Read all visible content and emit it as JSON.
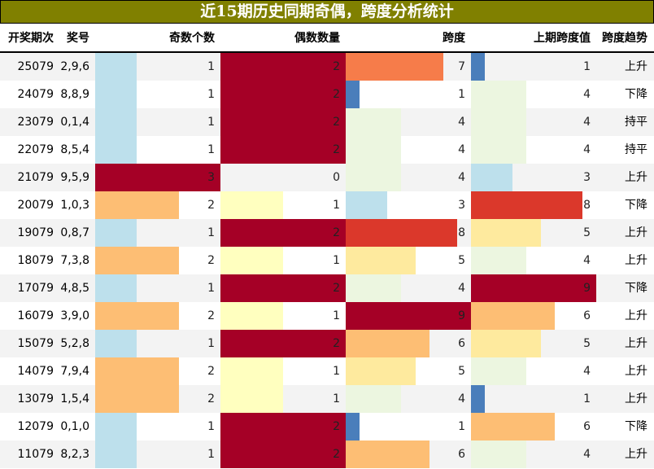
{
  "title": "近15期历史同期奇偶，跨度分析统计",
  "headers": {
    "period": "开奖期次",
    "number": "奖号",
    "odd": "奇数个数",
    "even": "偶数数量",
    "span": "跨度",
    "prev_span": "上期跨度值",
    "trend": "跨度趋势"
  },
  "scales": {
    "odd_max": 3,
    "even_max": 2,
    "span_max": 9
  },
  "colors": {
    "odd": {
      "1": "#bde0ec",
      "2": "#fdbe74",
      "3": "#a50026"
    },
    "even": {
      "1": "#ffffbf",
      "2": "#a50026"
    },
    "span": {
      "1": "#4a7ebb",
      "3": "#bde0ec",
      "4": "#ecf6e0",
      "5": "#feea9e",
      "6": "#fdbe74",
      "7": "#f67c4a",
      "8": "#db382b",
      "9": "#a50026"
    },
    "title_bg": "#808000"
  },
  "rows": [
    {
      "period": "25079",
      "number": "2,9,6",
      "odd": 1,
      "even": 2,
      "span": 7,
      "prev_span": 1,
      "trend": "上升"
    },
    {
      "period": "24079",
      "number": "8,8,9",
      "odd": 1,
      "even": 2,
      "span": 1,
      "prev_span": 4,
      "trend": "下降"
    },
    {
      "period": "23079",
      "number": "0,1,4",
      "odd": 1,
      "even": 2,
      "span": 4,
      "prev_span": 4,
      "trend": "持平"
    },
    {
      "period": "22079",
      "number": "8,5,4",
      "odd": 1,
      "even": 2,
      "span": 4,
      "prev_span": 4,
      "trend": "持平"
    },
    {
      "period": "21079",
      "number": "9,5,9",
      "odd": 3,
      "even": 0,
      "span": 4,
      "prev_span": 3,
      "trend": "上升"
    },
    {
      "period": "20079",
      "number": "1,0,3",
      "odd": 2,
      "even": 1,
      "span": 3,
      "prev_span": 8,
      "trend": "下降"
    },
    {
      "period": "19079",
      "number": "0,8,7",
      "odd": 1,
      "even": 2,
      "span": 8,
      "prev_span": 5,
      "trend": "上升"
    },
    {
      "period": "18079",
      "number": "7,3,8",
      "odd": 2,
      "even": 1,
      "span": 5,
      "prev_span": 4,
      "trend": "上升"
    },
    {
      "period": "17079",
      "number": "4,8,5",
      "odd": 1,
      "even": 2,
      "span": 4,
      "prev_span": 9,
      "trend": "下降"
    },
    {
      "period": "16079",
      "number": "3,9,0",
      "odd": 2,
      "even": 1,
      "span": 9,
      "prev_span": 6,
      "trend": "上升"
    },
    {
      "period": "15079",
      "number": "5,2,8",
      "odd": 1,
      "even": 2,
      "span": 6,
      "prev_span": 5,
      "trend": "上升"
    },
    {
      "period": "14079",
      "number": "7,9,4",
      "odd": 2,
      "even": 1,
      "span": 5,
      "prev_span": 4,
      "trend": "上升"
    },
    {
      "period": "13079",
      "number": "1,5,4",
      "odd": 2,
      "even": 1,
      "span": 4,
      "prev_span": 1,
      "trend": "上升"
    },
    {
      "period": "12079",
      "number": "0,1,0",
      "odd": 1,
      "even": 2,
      "span": 1,
      "prev_span": 6,
      "trend": "下降"
    },
    {
      "period": "11079",
      "number": "8,2,3",
      "odd": 1,
      "even": 2,
      "span": 6,
      "prev_span": 4,
      "trend": "上升"
    }
  ]
}
